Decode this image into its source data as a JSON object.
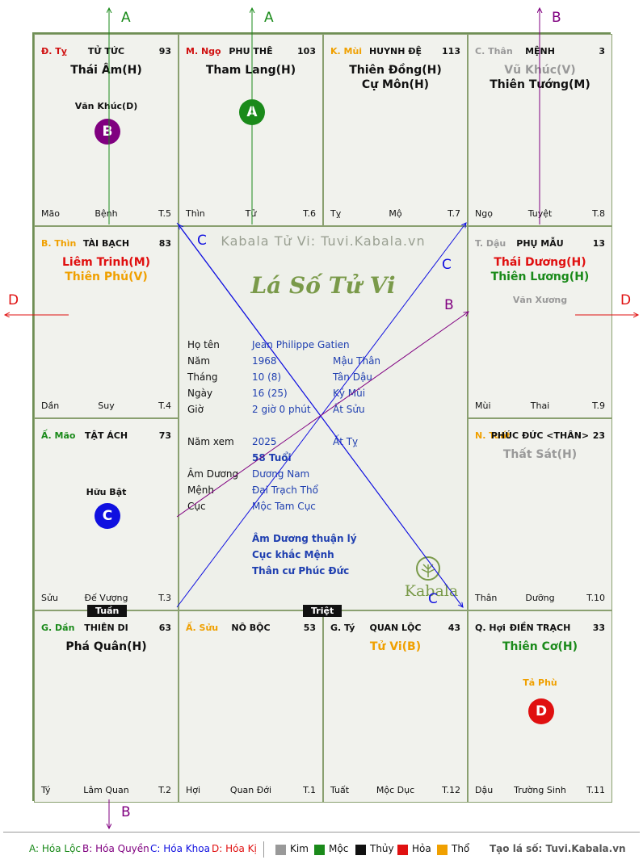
{
  "cells": [
    {
      "stem": "Đ. Tỵ",
      "stem_color": "#d01010",
      "name": "TỬ TỨC",
      "num": "93",
      "stars": [
        {
          "t": "Thái Âm(H)",
          "c": "#111"
        }
      ],
      "minor": "Văn Khúc(D)",
      "minor_color": "#111",
      "badge": "B",
      "badge_color": "#800080",
      "fl": "Mão",
      "fm": "Bệnh",
      "fr": "T.5"
    },
    {
      "stem": "M. Ngọ",
      "stem_color": "#d01010",
      "name": "PHU THÊ",
      "num": "103",
      "stars": [
        {
          "t": "Tham Lang(H)",
          "c": "#111"
        }
      ],
      "minor": "",
      "minor_color": "#111",
      "badge": "A",
      "badge_color": "#1a8a1a",
      "fl": "Thìn",
      "fm": "Tử",
      "fr": "T.6"
    },
    {
      "stem": "K. Mùi",
      "stem_color": "#f0a000",
      "name": "HUYNH ĐỆ",
      "num": "113",
      "stars": [
        {
          "t": "Thiên Đồng(H)",
          "c": "#111"
        },
        {
          "t": "Cự Môn(H)",
          "c": "#111"
        }
      ],
      "minor": "",
      "minor_color": "#111",
      "badge": "",
      "badge_color": "",
      "fl": "Tỵ",
      "fm": "Mộ",
      "fr": "T.7"
    },
    {
      "stem": "C. Thân",
      "stem_color": "#999999",
      "name": "MỆNH",
      "num": "3",
      "stars": [
        {
          "t": "Vũ Khúc(V)",
          "c": "#999999"
        },
        {
          "t": "Thiên Tướng(M)",
          "c": "#111"
        }
      ],
      "minor": "",
      "minor_color": "#111",
      "badge": "",
      "badge_color": "",
      "fl": "Ngọ",
      "fm": "Tuyệt",
      "fr": "T.8"
    },
    {
      "stem": "B. Thìn",
      "stem_color": "#f0a000",
      "name": "TÀI BẠCH",
      "num": "83",
      "stars": [
        {
          "t": "Liêm Trinh(M)",
          "c": "#e01010"
        },
        {
          "t": "Thiên Phủ(V)",
          "c": "#f0a000"
        }
      ],
      "minor": "",
      "minor_color": "#111",
      "badge": "",
      "badge_color": "",
      "fl": "Dần",
      "fm": "Suy",
      "fr": "T.4"
    },
    {
      "stem": "T. Dậu",
      "stem_color": "#999999",
      "name": "PHỤ MẪU",
      "num": "13",
      "stars": [
        {
          "t": "Thái Dương(H)",
          "c": "#e01010"
        },
        {
          "t": "Thiên Lương(H)",
          "c": "#1a8a1a"
        }
      ],
      "minor": "Văn Xương",
      "minor_color": "#999999",
      "badge": "",
      "badge_color": "",
      "fl": "Mùi",
      "fm": "Thai",
      "fr": "T.9"
    },
    {
      "stem": "Ấ. Mão",
      "stem_color": "#1a8a1a",
      "name": "TẬT ÁCH",
      "num": "73",
      "stars": [],
      "minor": "Hữu Bật",
      "minor_color": "#111",
      "badge": "C",
      "badge_color": "#1010e0",
      "fl": "Sửu",
      "fm": "Đế Vượng",
      "fr": "T.3"
    },
    {
      "stem": "N. Tuất",
      "stem_color": "#f0a000",
      "name": "PHÚC ĐỨC <THÂN>",
      "num": "23",
      "stars": [
        {
          "t": "Thất Sát(H)",
          "c": "#999999"
        }
      ],
      "minor": "",
      "minor_color": "#111",
      "badge": "",
      "badge_color": "",
      "fl": "Thân",
      "fm": "Dưỡng",
      "fr": "T.10"
    },
    {
      "stem": "G. Dần",
      "stem_color": "#1a8a1a",
      "name": "THIÊN DI",
      "num": "63",
      "stars": [
        {
          "t": "Phá Quân(H)",
          "c": "#111"
        }
      ],
      "minor": "",
      "minor_color": "#111",
      "badge": "",
      "badge_color": "",
      "fl": "Tý",
      "fm": "Lâm Quan",
      "fr": "T.2"
    },
    {
      "stem": "Ấ. Sửu",
      "stem_color": "#f0a000",
      "name": "NÔ BỘC",
      "num": "53",
      "stars": [],
      "minor": "",
      "minor_color": "#111",
      "badge": "",
      "badge_color": "",
      "fl": "Hợi",
      "fm": "Quan Đới",
      "fr": "T.1"
    },
    {
      "stem": "G. Tý",
      "stem_color": "#111111",
      "name": "QUAN LỘC",
      "num": "43",
      "stars": [
        {
          "t": "Tử Vi(B)",
          "c": "#f0a000"
        }
      ],
      "minor": "",
      "minor_color": "#111",
      "badge": "",
      "badge_color": "",
      "fl": "Tuất",
      "fm": "Mộc Dục",
      "fr": "T.12"
    },
    {
      "stem": "Q. Hợi",
      "stem_color": "#111111",
      "name": "ĐIỀN TRẠCH",
      "num": "33",
      "stars": [
        {
          "t": "Thiên Cơ(H)",
          "c": "#1a8a1a"
        }
      ],
      "minor": "Tả Phù",
      "minor_color": "#f0a000",
      "badge": "D",
      "badge_color": "#e01010",
      "fl": "Dậu",
      "fm": "Trường Sinh",
      "fr": "T.11"
    }
  ],
  "center": {
    "watermark": "Kabala Tử Vi: Tuvi.Kabala.vn",
    "title": "Lá Số Tử Vi",
    "rows": [
      {
        "l": "Họ tên",
        "v": "Jean Philippe Gatien",
        "v2": ""
      },
      {
        "l": "Năm",
        "v": "1968",
        "v2": "Mậu Thân"
      },
      {
        "l": "Tháng",
        "v": "10 (8)",
        "v2": "Tân Dậu"
      },
      {
        "l": "Ngày",
        "v": "16  (25)",
        "v2": "Kỷ Mùi"
      },
      {
        "l": "Giờ",
        "v": "2 giờ 0 phút",
        "v2": "Ất Sửu"
      },
      {
        "l": "Năm xem",
        "v": "2025",
        "v2": "Ất Tỵ"
      },
      {
        "l": "",
        "v": "58 Tuổi",
        "v2": ""
      },
      {
        "l": "Âm Dương",
        "v": "Dương Nam",
        "v2": ""
      },
      {
        "l": "Mệnh",
        "v": "Đại Trạch Thổ",
        "v2": ""
      },
      {
        "l": "Cục",
        "v": "Mộc Tam Cục",
        "v2": ""
      }
    ],
    "notes": [
      "Âm Dương thuận lý",
      "Cục khắc Mệnh",
      "Thân cư Phúc Đức"
    ],
    "logo": "Kabala"
  },
  "tags": {
    "tuan": "Tuần",
    "triet": "Triệt"
  },
  "arrows": {
    "a1": "A",
    "a2": "A",
    "b_top": "B",
    "b_bottom": "B",
    "d_left": "D",
    "d_right": "D",
    "c1": "C",
    "c2": "C",
    "c3": "C",
    "b_mid": "B"
  },
  "legend": {
    "a": "A: Hóa Lộc",
    "b": "B: Hóa Quyền",
    "c": "C: Hóa Khoa",
    "d": "D: Hóa Kị",
    "kim": "Kim",
    "moc": "Mộc",
    "thuy": "Thủy",
    "hoa": "Hỏa",
    "tho": "Thổ",
    "credit": "Tạo lá số: Tuvi.Kabala.vn",
    "colors": {
      "kim": "#999999",
      "moc": "#1a8a1a",
      "thuy": "#111111",
      "hoa": "#e01010",
      "tho": "#f0a000"
    }
  }
}
